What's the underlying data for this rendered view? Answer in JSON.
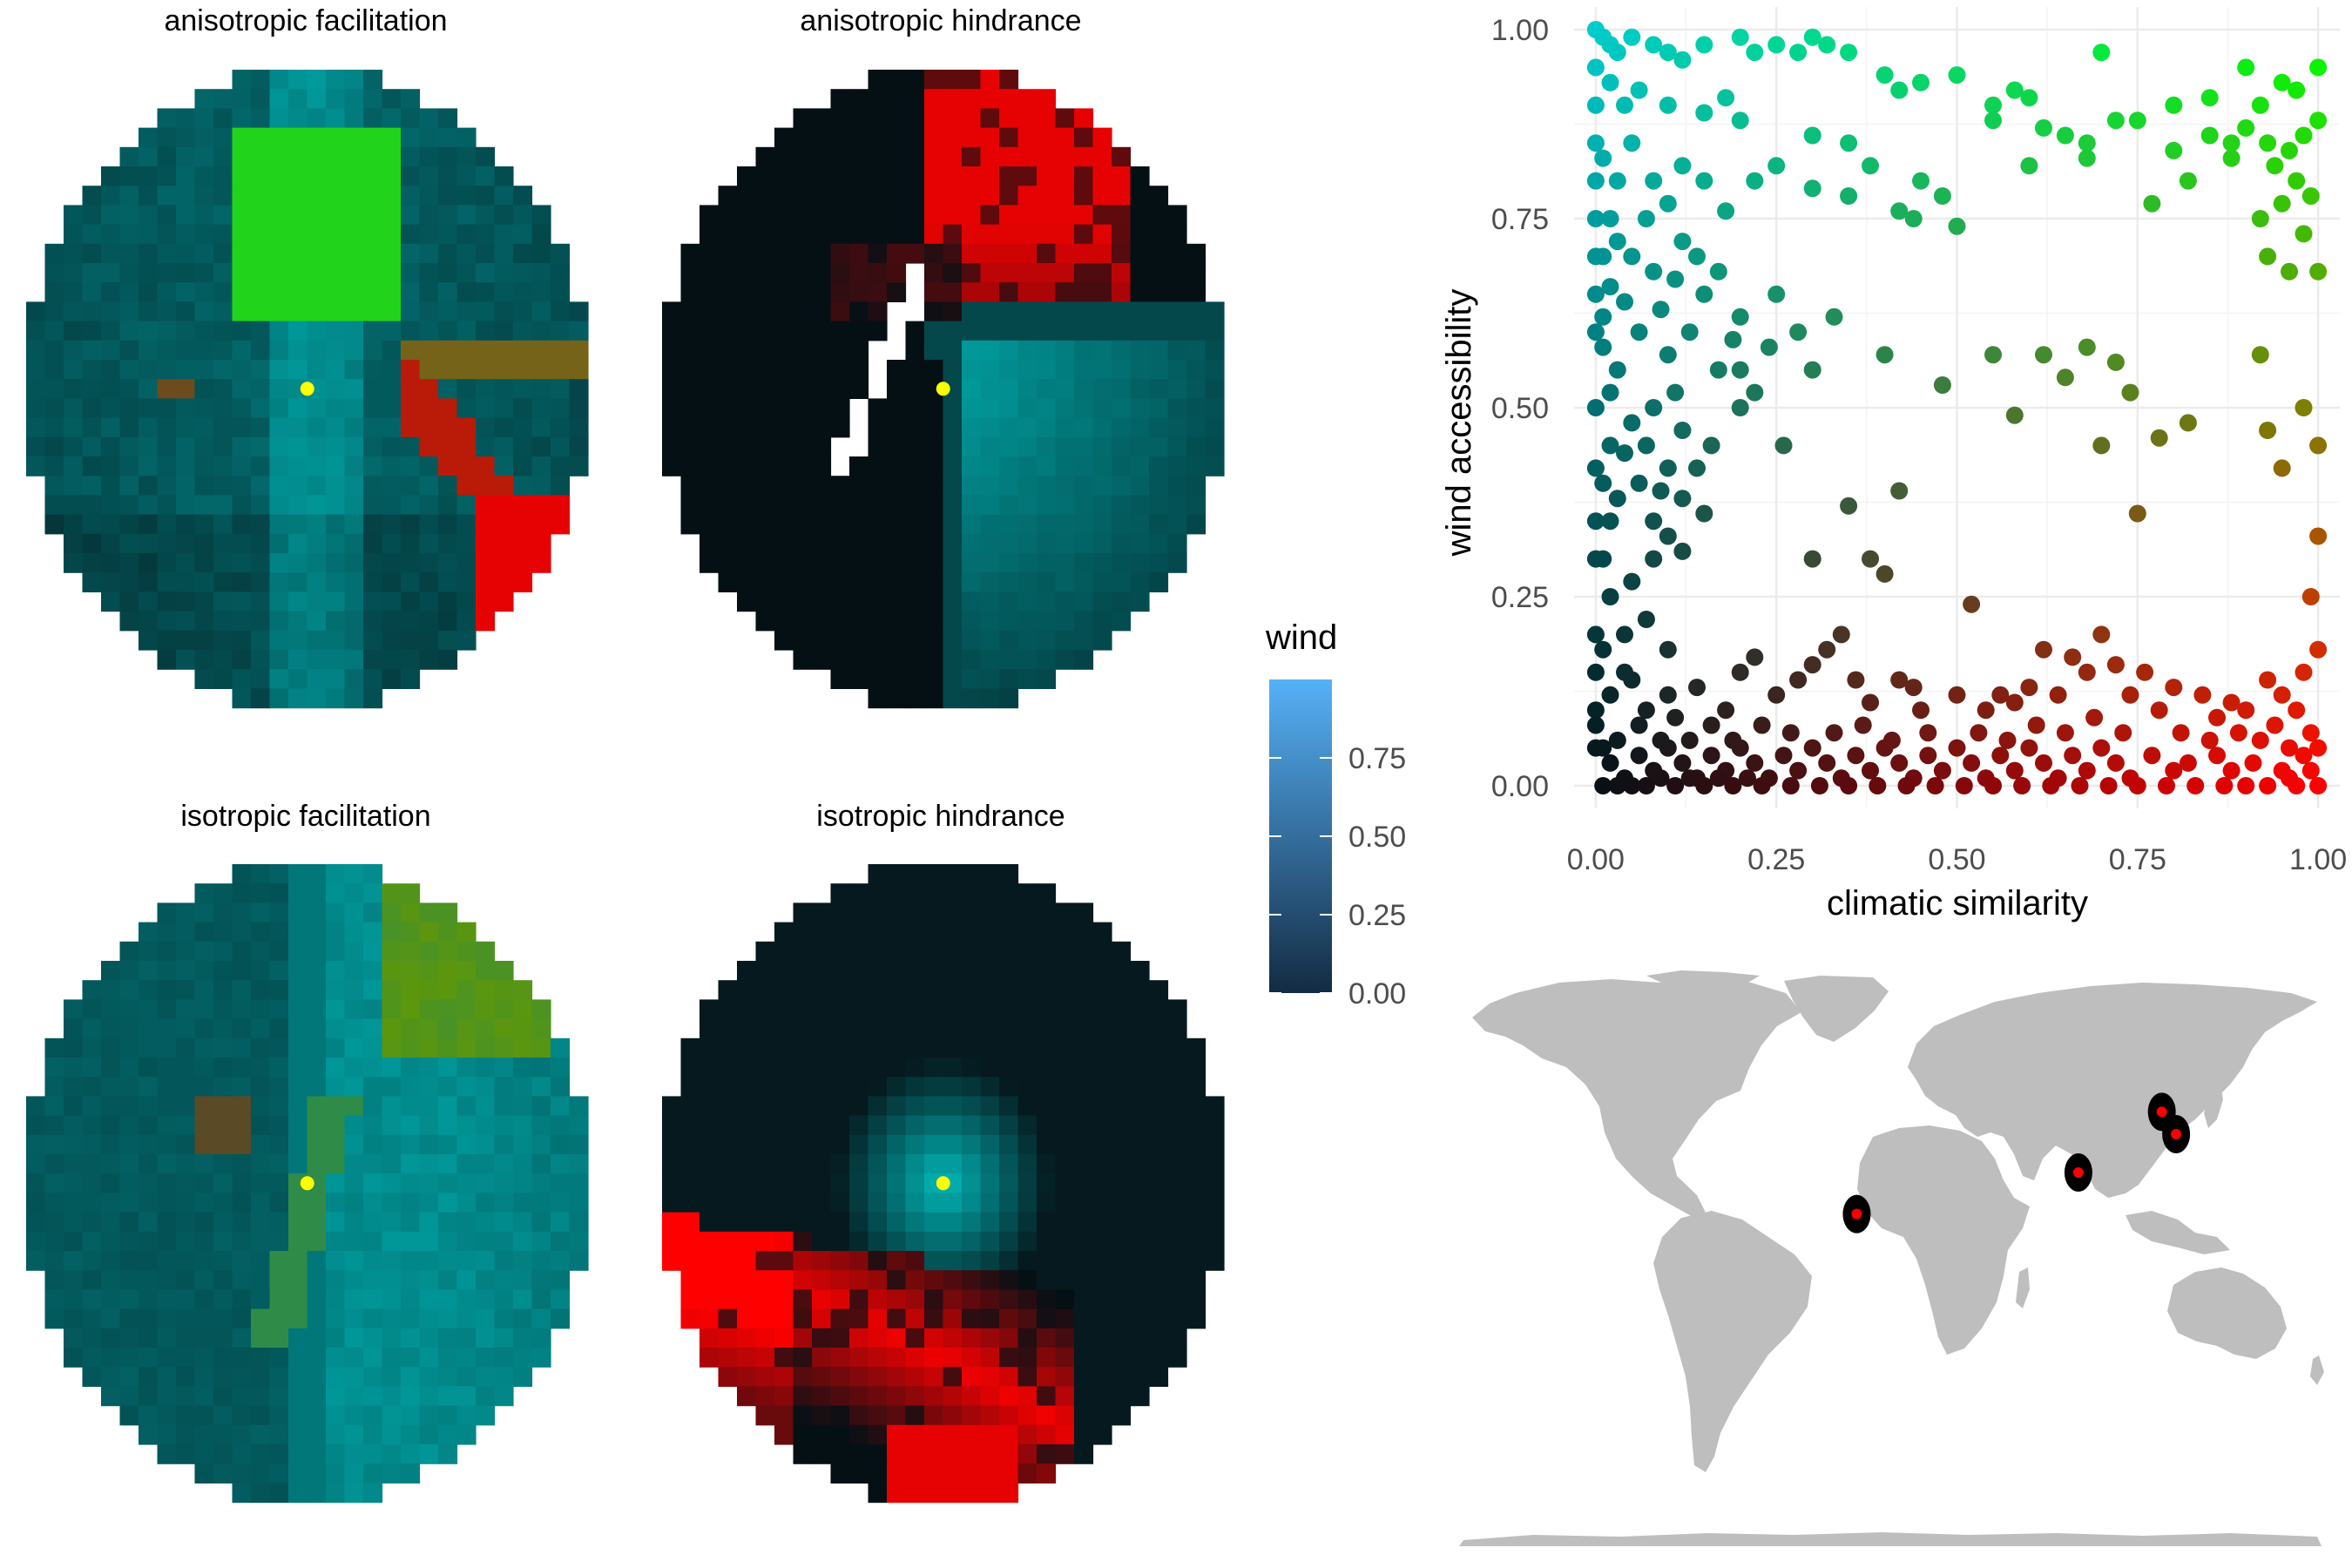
{
  "panels": {
    "anisotropic_facilitation": {
      "title": "anisotropic facilitation"
    },
    "anisotropic_hindrance": {
      "title": "anisotropic hindrance"
    },
    "isotropic_facilitation": {
      "title": "isotropic facilitation"
    },
    "isotropic_hindrance": {
      "title": "isotropic hindrance"
    }
  },
  "colors": {
    "low": "#051015",
    "wind_high": "#00cccc",
    "climate_high": "#ff0000",
    "both_high": "#00ff00",
    "center_point": "#ffff00",
    "land": "#bebebe",
    "grid": "#ebebeb",
    "site_halo": "#000000",
    "site_point": "#ff0000",
    "legend_low": "#132b43",
    "legend_high": "#56b1f7"
  },
  "legend": {
    "title": "wind",
    "ticks": [
      "0.00",
      "0.25",
      "0.50",
      "0.75"
    ],
    "tick_values": [
      0,
      0.25,
      0.5,
      0.75
    ],
    "range": [
      0,
      1
    ]
  },
  "chart_data": {
    "type": "scatter",
    "xlabel": "climatic similarity",
    "ylabel": "wind accessibility",
    "xlim": [
      -0.03,
      1.03
    ],
    "ylim": [
      -0.03,
      1.03
    ],
    "x_ticks": [
      "0.00",
      "0.25",
      "0.50",
      "0.75",
      "1.00"
    ],
    "x_tick_values": [
      0,
      0.25,
      0.5,
      0.75,
      1
    ],
    "y_ticks": [
      "0.00",
      "0.25",
      "0.50",
      "0.75",
      "1.00"
    ],
    "y_tick_values": [
      0,
      0.25,
      0.5,
      0.75,
      1
    ],
    "grid": true,
    "color_encoding": "red = climatic similarity, cyan = wind accessibility",
    "points": [
      [
        0.0,
        1.0
      ],
      [
        0.01,
        0.99
      ],
      [
        0.02,
        0.98
      ],
      [
        0.03,
        0.97
      ],
      [
        0.05,
        0.99
      ],
      [
        0.08,
        0.98
      ],
      [
        0.1,
        0.97
      ],
      [
        0.12,
        0.96
      ],
      [
        0.15,
        0.98
      ],
      [
        0.2,
        0.99
      ],
      [
        0.22,
        0.97
      ],
      [
        0.25,
        0.98
      ],
      [
        0.28,
        0.97
      ],
      [
        0.3,
        0.99
      ],
      [
        0.32,
        0.98
      ],
      [
        0.35,
        0.97
      ],
      [
        0.4,
        0.94
      ],
      [
        0.42,
        0.92
      ],
      [
        0.45,
        0.93
      ],
      [
        0.5,
        0.94
      ],
      [
        0.55,
        0.9
      ],
      [
        0.58,
        0.92
      ],
      [
        0.6,
        0.91
      ],
      [
        0.7,
        0.97
      ],
      [
        0.75,
        0.88
      ],
      [
        0.8,
        0.9
      ],
      [
        0.85,
        0.91
      ],
      [
        0.9,
        0.95
      ],
      [
        0.92,
        0.9
      ],
      [
        0.95,
        0.93
      ],
      [
        0.97,
        0.92
      ],
      [
        1.0,
        0.95
      ],
      [
        0.0,
        0.95
      ],
      [
        0.02,
        0.93
      ],
      [
        0.04,
        0.9
      ],
      [
        0.06,
        0.92
      ],
      [
        0.1,
        0.9
      ],
      [
        0.15,
        0.89
      ],
      [
        0.18,
        0.91
      ],
      [
        0.2,
        0.88
      ],
      [
        0.3,
        0.86
      ],
      [
        0.35,
        0.85
      ],
      [
        0.38,
        0.82
      ],
      [
        0.45,
        0.8
      ],
      [
        0.48,
        0.78
      ],
      [
        0.55,
        0.88
      ],
      [
        0.62,
        0.87
      ],
      [
        0.65,
        0.86
      ],
      [
        0.68,
        0.85
      ],
      [
        0.72,
        0.88
      ],
      [
        0.8,
        0.84
      ],
      [
        0.85,
        0.86
      ],
      [
        0.88,
        0.85
      ],
      [
        0.9,
        0.87
      ],
      [
        0.93,
        0.85
      ],
      [
        0.96,
        0.84
      ],
      [
        0.98,
        0.86
      ],
      [
        1.0,
        0.88
      ],
      [
        0.94,
        0.82
      ],
      [
        0.97,
        0.8
      ],
      [
        0.99,
        0.78
      ],
      [
        0.95,
        0.77
      ],
      [
        0.92,
        0.75
      ],
      [
        0.98,
        0.73
      ],
      [
        0.93,
        0.7
      ],
      [
        1.0,
        0.68
      ],
      [
        0.96,
        0.68
      ],
      [
        0.88,
        0.83
      ],
      [
        0.82,
        0.8
      ],
      [
        0.77,
        0.77
      ],
      [
        0.68,
        0.83
      ],
      [
        0.6,
        0.82
      ],
      [
        0.5,
        0.74
      ],
      [
        0.44,
        0.75
      ],
      [
        0.42,
        0.76
      ],
      [
        0.35,
        0.78
      ],
      [
        0.3,
        0.79
      ],
      [
        0.25,
        0.82
      ],
      [
        0.22,
        0.8
      ],
      [
        0.18,
        0.76
      ],
      [
        0.15,
        0.8
      ],
      [
        0.12,
        0.82
      ],
      [
        0.1,
        0.77
      ],
      [
        0.08,
        0.8
      ],
      [
        0.05,
        0.85
      ],
      [
        0.03,
        0.8
      ],
      [
        0.02,
        0.75
      ],
      [
        0.01,
        0.7
      ],
      [
        0.0,
        0.65
      ],
      [
        0.05,
        0.7
      ],
      [
        0.08,
        0.68
      ],
      [
        0.12,
        0.72
      ],
      [
        0.15,
        0.65
      ],
      [
        0.2,
        0.62
      ],
      [
        0.25,
        0.65
      ],
      [
        0.28,
        0.6
      ],
      [
        0.33,
        0.62
      ],
      [
        0.4,
        0.57
      ],
      [
        0.3,
        0.55
      ],
      [
        0.2,
        0.55
      ],
      [
        0.13,
        0.6
      ],
      [
        0.1,
        0.57
      ],
      [
        0.06,
        0.6
      ],
      [
        0.03,
        0.55
      ],
      [
        0.01,
        0.58
      ],
      [
        0.0,
        0.5
      ],
      [
        0.02,
        0.45
      ],
      [
        0.05,
        0.48
      ],
      [
        0.08,
        0.5
      ],
      [
        0.12,
        0.47
      ],
      [
        0.16,
        0.45
      ],
      [
        0.2,
        0.5
      ],
      [
        0.1,
        0.42
      ],
      [
        0.06,
        0.4
      ],
      [
        0.03,
        0.38
      ],
      [
        0.0,
        0.42
      ],
      [
        0.08,
        0.35
      ],
      [
        0.12,
        0.38
      ],
      [
        0.15,
        0.36
      ],
      [
        0.22,
        0.52
      ],
      [
        0.26,
        0.45
      ],
      [
        0.3,
        0.3
      ],
      [
        0.35,
        0.37
      ],
      [
        0.38,
        0.3
      ],
      [
        0.42,
        0.39
      ],
      [
        0.4,
        0.28
      ],
      [
        0.48,
        0.53
      ],
      [
        0.55,
        0.57
      ],
      [
        0.58,
        0.49
      ],
      [
        0.62,
        0.57
      ],
      [
        0.65,
        0.54
      ],
      [
        0.68,
        0.58
      ],
      [
        0.72,
        0.56
      ],
      [
        0.74,
        0.52
      ],
      [
        0.7,
        0.45
      ],
      [
        0.78,
        0.46
      ],
      [
        0.82,
        0.48
      ],
      [
        0.92,
        0.57
      ],
      [
        0.98,
        0.5
      ],
      [
        1.0,
        0.45
      ],
      [
        0.93,
        0.47
      ],
      [
        0.95,
        0.42
      ],
      [
        1.0,
        0.33
      ],
      [
        0.75,
        0.36
      ],
      [
        0.99,
        0.25
      ],
      [
        0.0,
        0.3
      ],
      [
        0.02,
        0.25
      ],
      [
        0.05,
        0.27
      ],
      [
        0.08,
        0.3
      ],
      [
        0.1,
        0.33
      ],
      [
        0.12,
        0.31
      ],
      [
        0.04,
        0.2
      ],
      [
        0.07,
        0.22
      ],
      [
        0.1,
        0.18
      ],
      [
        0.0,
        0.2
      ],
      [
        0.0,
        0.15
      ],
      [
        0.02,
        0.12
      ],
      [
        0.05,
        0.14
      ],
      [
        0.07,
        0.1
      ],
      [
        0.1,
        0.12
      ],
      [
        0.14,
        0.13
      ],
      [
        0.18,
        0.1
      ],
      [
        0.2,
        0.15
      ],
      [
        0.22,
        0.17
      ],
      [
        0.25,
        0.12
      ],
      [
        0.28,
        0.14
      ],
      [
        0.3,
        0.16
      ],
      [
        0.32,
        0.18
      ],
      [
        0.34,
        0.2
      ],
      [
        0.36,
        0.14
      ],
      [
        0.38,
        0.11
      ],
      [
        0.42,
        0.14
      ],
      [
        0.44,
        0.13
      ],
      [
        0.45,
        0.1
      ],
      [
        0.5,
        0.12
      ],
      [
        0.52,
        0.24
      ],
      [
        0.54,
        0.1
      ],
      [
        0.56,
        0.12
      ],
      [
        0.58,
        0.11
      ],
      [
        0.6,
        0.13
      ],
      [
        0.62,
        0.18
      ],
      [
        0.64,
        0.12
      ],
      [
        0.66,
        0.17
      ],
      [
        0.68,
        0.15
      ],
      [
        0.7,
        0.2
      ],
      [
        0.72,
        0.16
      ],
      [
        0.74,
        0.12
      ],
      [
        0.76,
        0.15
      ],
      [
        0.78,
        0.1
      ],
      [
        0.8,
        0.13
      ],
      [
        0.84,
        0.12
      ],
      [
        0.86,
        0.09
      ],
      [
        0.88,
        0.11
      ],
      [
        0.9,
        0.1
      ],
      [
        0.93,
        0.14
      ],
      [
        0.95,
        0.12
      ],
      [
        0.98,
        0.15
      ],
      [
        1.0,
        0.18
      ],
      [
        0.97,
        0.1
      ],
      [
        0.99,
        0.07
      ],
      [
        1.0,
        0.05
      ],
      [
        0.96,
        0.05
      ],
      [
        0.94,
        0.08
      ],
      [
        0.91,
        0.03
      ],
      [
        0.88,
        0.02
      ],
      [
        0.86,
        0.04
      ],
      [
        0.82,
        0.03
      ],
      [
        0.8,
        0.02
      ],
      [
        0.77,
        0.04
      ],
      [
        0.74,
        0.01
      ],
      [
        0.72,
        0.03
      ],
      [
        0.7,
        0.05
      ],
      [
        0.68,
        0.02
      ],
      [
        0.66,
        0.04
      ],
      [
        0.64,
        0.01
      ],
      [
        0.62,
        0.03
      ],
      [
        0.6,
        0.05
      ],
      [
        0.58,
        0.02
      ],
      [
        0.56,
        0.04
      ],
      [
        0.54,
        0.01
      ],
      [
        0.52,
        0.03
      ],
      [
        0.5,
        0.05
      ],
      [
        0.48,
        0.02
      ],
      [
        0.46,
        0.04
      ],
      [
        0.44,
        0.01
      ],
      [
        0.42,
        0.03
      ],
      [
        0.4,
        0.05
      ],
      [
        0.38,
        0.02
      ],
      [
        0.36,
        0.04
      ],
      [
        0.34,
        0.01
      ],
      [
        0.32,
        0.03
      ],
      [
        0.3,
        0.05
      ],
      [
        0.28,
        0.02
      ],
      [
        0.26,
        0.04
      ],
      [
        0.24,
        0.01
      ],
      [
        0.22,
        0.03
      ],
      [
        0.2,
        0.05
      ],
      [
        0.18,
        0.02
      ],
      [
        0.16,
        0.04
      ],
      [
        0.14,
        0.01
      ],
      [
        0.12,
        0.03
      ],
      [
        0.1,
        0.05
      ],
      [
        0.08,
        0.02
      ],
      [
        0.06,
        0.04
      ],
      [
        0.04,
        0.01
      ],
      [
        0.02,
        0.03
      ],
      [
        0.0,
        0.05
      ],
      [
        0.01,
        0.0
      ],
      [
        0.03,
        0.0
      ],
      [
        0.05,
        0.0
      ],
      [
        0.07,
        0.0
      ],
      [
        0.09,
        0.01
      ],
      [
        0.11,
        0.0
      ],
      [
        0.13,
        0.01
      ],
      [
        0.15,
        0.0
      ],
      [
        0.17,
        0.01
      ],
      [
        0.19,
        0.0
      ],
      [
        0.21,
        0.01
      ],
      [
        0.23,
        0.0
      ],
      [
        0.27,
        0.0
      ],
      [
        0.31,
        0.0
      ],
      [
        0.35,
        0.0
      ],
      [
        0.39,
        0.0
      ],
      [
        0.43,
        0.0
      ],
      [
        0.47,
        0.0
      ],
      [
        0.51,
        0.0
      ],
      [
        0.55,
        0.0
      ],
      [
        0.59,
        0.0
      ],
      [
        0.63,
        0.0
      ],
      [
        0.67,
        0.0
      ],
      [
        0.71,
        0.0
      ],
      [
        0.75,
        0.0
      ],
      [
        0.79,
        0.0
      ],
      [
        0.83,
        0.0
      ],
      [
        0.87,
        0.0
      ],
      [
        0.9,
        0.0
      ],
      [
        0.93,
        0.0
      ],
      [
        0.95,
        0.02
      ],
      [
        0.97,
        0.0
      ],
      [
        0.99,
        0.02
      ],
      [
        1.0,
        0.0
      ],
      [
        0.98,
        0.04
      ],
      [
        0.96,
        0.01
      ],
      [
        0.0,
        0.1
      ],
      [
        0.0,
        0.08
      ],
      [
        0.0,
        0.35
      ],
      [
        0.0,
        0.6
      ],
      [
        0.0,
        0.7
      ],
      [
        0.0,
        0.75
      ],
      [
        0.0,
        0.8
      ],
      [
        0.0,
        0.85
      ],
      [
        0.0,
        0.9
      ],
      [
        0.01,
        0.83
      ],
      [
        0.01,
        0.62
      ],
      [
        0.01,
        0.4
      ],
      [
        0.01,
        0.3
      ],
      [
        0.01,
        0.18
      ],
      [
        0.01,
        0.05
      ],
      [
        0.02,
        0.66
      ],
      [
        0.02,
        0.35
      ],
      [
        0.03,
        0.06
      ],
      [
        0.04,
        0.15
      ],
      [
        0.06,
        0.08
      ],
      [
        0.09,
        0.06
      ],
      [
        0.11,
        0.09
      ],
      [
        0.13,
        0.06
      ],
      [
        0.16,
        0.08
      ],
      [
        0.19,
        0.06
      ],
      [
        0.23,
        0.08
      ],
      [
        0.27,
        0.07
      ],
      [
        0.33,
        0.07
      ],
      [
        0.37,
        0.08
      ],
      [
        0.41,
        0.06
      ],
      [
        0.46,
        0.07
      ],
      [
        0.53,
        0.07
      ],
      [
        0.57,
        0.06
      ],
      [
        0.61,
        0.08
      ],
      [
        0.65,
        0.07
      ],
      [
        0.69,
        0.09
      ],
      [
        0.73,
        0.07
      ],
      [
        0.81,
        0.07
      ],
      [
        0.85,
        0.06
      ],
      [
        0.89,
        0.07
      ],
      [
        0.92,
        0.06
      ],
      [
        0.03,
        0.72
      ],
      [
        0.04,
        0.64
      ],
      [
        0.07,
        0.75
      ],
      [
        0.09,
        0.63
      ],
      [
        0.11,
        0.67
      ],
      [
        0.14,
        0.7
      ],
      [
        0.17,
        0.68
      ],
      [
        0.02,
        0.52
      ],
      [
        0.04,
        0.44
      ],
      [
        0.07,
        0.45
      ],
      [
        0.09,
        0.39
      ],
      [
        0.11,
        0.52
      ],
      [
        0.14,
        0.42
      ],
      [
        0.17,
        0.55
      ],
      [
        0.19,
        0.59
      ],
      [
        0.24,
        0.58
      ]
    ]
  },
  "map": {
    "sites": [
      {
        "lon": -15,
        "lat": 14
      },
      {
        "lon": 78,
        "lat": 27
      },
      {
        "lon": 113,
        "lat": 46
      },
      {
        "lon": 119,
        "lat": 39
      }
    ]
  }
}
